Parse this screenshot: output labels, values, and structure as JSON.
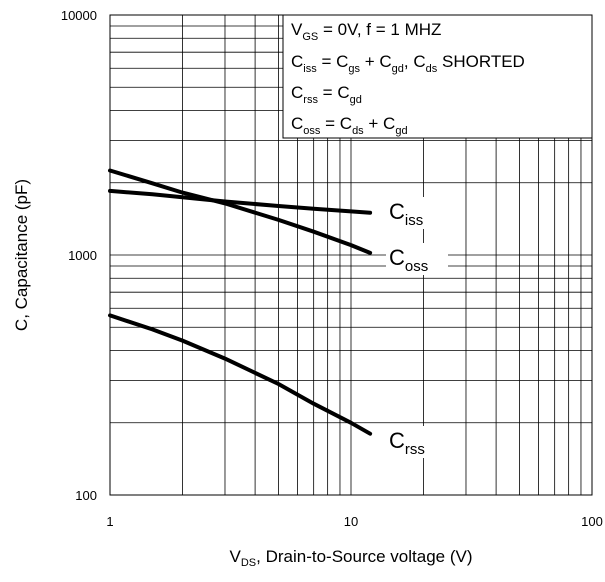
{
  "chart_data": {
    "type": "line",
    "xscale": "log",
    "yscale": "log",
    "xlim": [
      1,
      100
    ],
    "ylim": [
      100,
      10000
    ],
    "grid": true,
    "xticks": [
      "1",
      "10",
      "100"
    ],
    "yticks": [
      "100",
      "1000",
      "10000"
    ],
    "xlabel": {
      "main": "V",
      "sub": "DS",
      "rest": ", Drain-to-Source voltage (V)"
    },
    "ylabel": "C, Capacitance (pF)",
    "legend_lines": [
      [
        {
          "t": "V"
        },
        {
          "t": "GS",
          "sub": true
        },
        {
          "t": " = 0V,      f = 1 MHZ"
        }
      ],
      [
        {
          "t": "C"
        },
        {
          "t": "iss",
          "sub": true
        },
        {
          "t": " = C"
        },
        {
          "t": "gs",
          "sub": true
        },
        {
          "t": " + C"
        },
        {
          "t": "gd",
          "sub": true
        },
        {
          "t": ", C"
        },
        {
          "t": "ds",
          "sub": true
        },
        {
          "t": " SHORTED"
        }
      ],
      [
        {
          "t": "C"
        },
        {
          "t": "rss",
          "sub": true
        },
        {
          "t": " = C"
        },
        {
          "t": "gd",
          "sub": true
        }
      ],
      [
        {
          "t": "C"
        },
        {
          "t": "oss",
          "sub": true
        },
        {
          "t": " = C"
        },
        {
          "t": "ds",
          "sub": true
        },
        {
          "t": " + C"
        },
        {
          "t": "gd",
          "sub": true
        }
      ]
    ],
    "legend_placement": "top-right",
    "series": [
      {
        "name": "Ciss",
        "label_main": "C",
        "label_sub": "iss",
        "x": [
          1,
          1.5,
          2,
          3,
          5,
          7,
          10,
          12
        ],
        "y": [
          1850,
          1790,
          1740,
          1670,
          1600,
          1560,
          1520,
          1500
        ]
      },
      {
        "name": "Coss",
        "label_main": "C",
        "label_sub": "oss",
        "x": [
          1,
          1.5,
          2,
          3,
          5,
          7,
          10,
          12
        ],
        "y": [
          2250,
          1990,
          1820,
          1640,
          1400,
          1250,
          1100,
          1020
        ]
      },
      {
        "name": "Crss",
        "label_main": "C",
        "label_sub": "rss",
        "x": [
          1,
          1.5,
          2,
          3,
          5,
          7,
          10,
          12
        ],
        "y": [
          560,
          490,
          440,
          370,
          290,
          240,
          200,
          180
        ]
      }
    ],
    "line_color": "#000000"
  }
}
